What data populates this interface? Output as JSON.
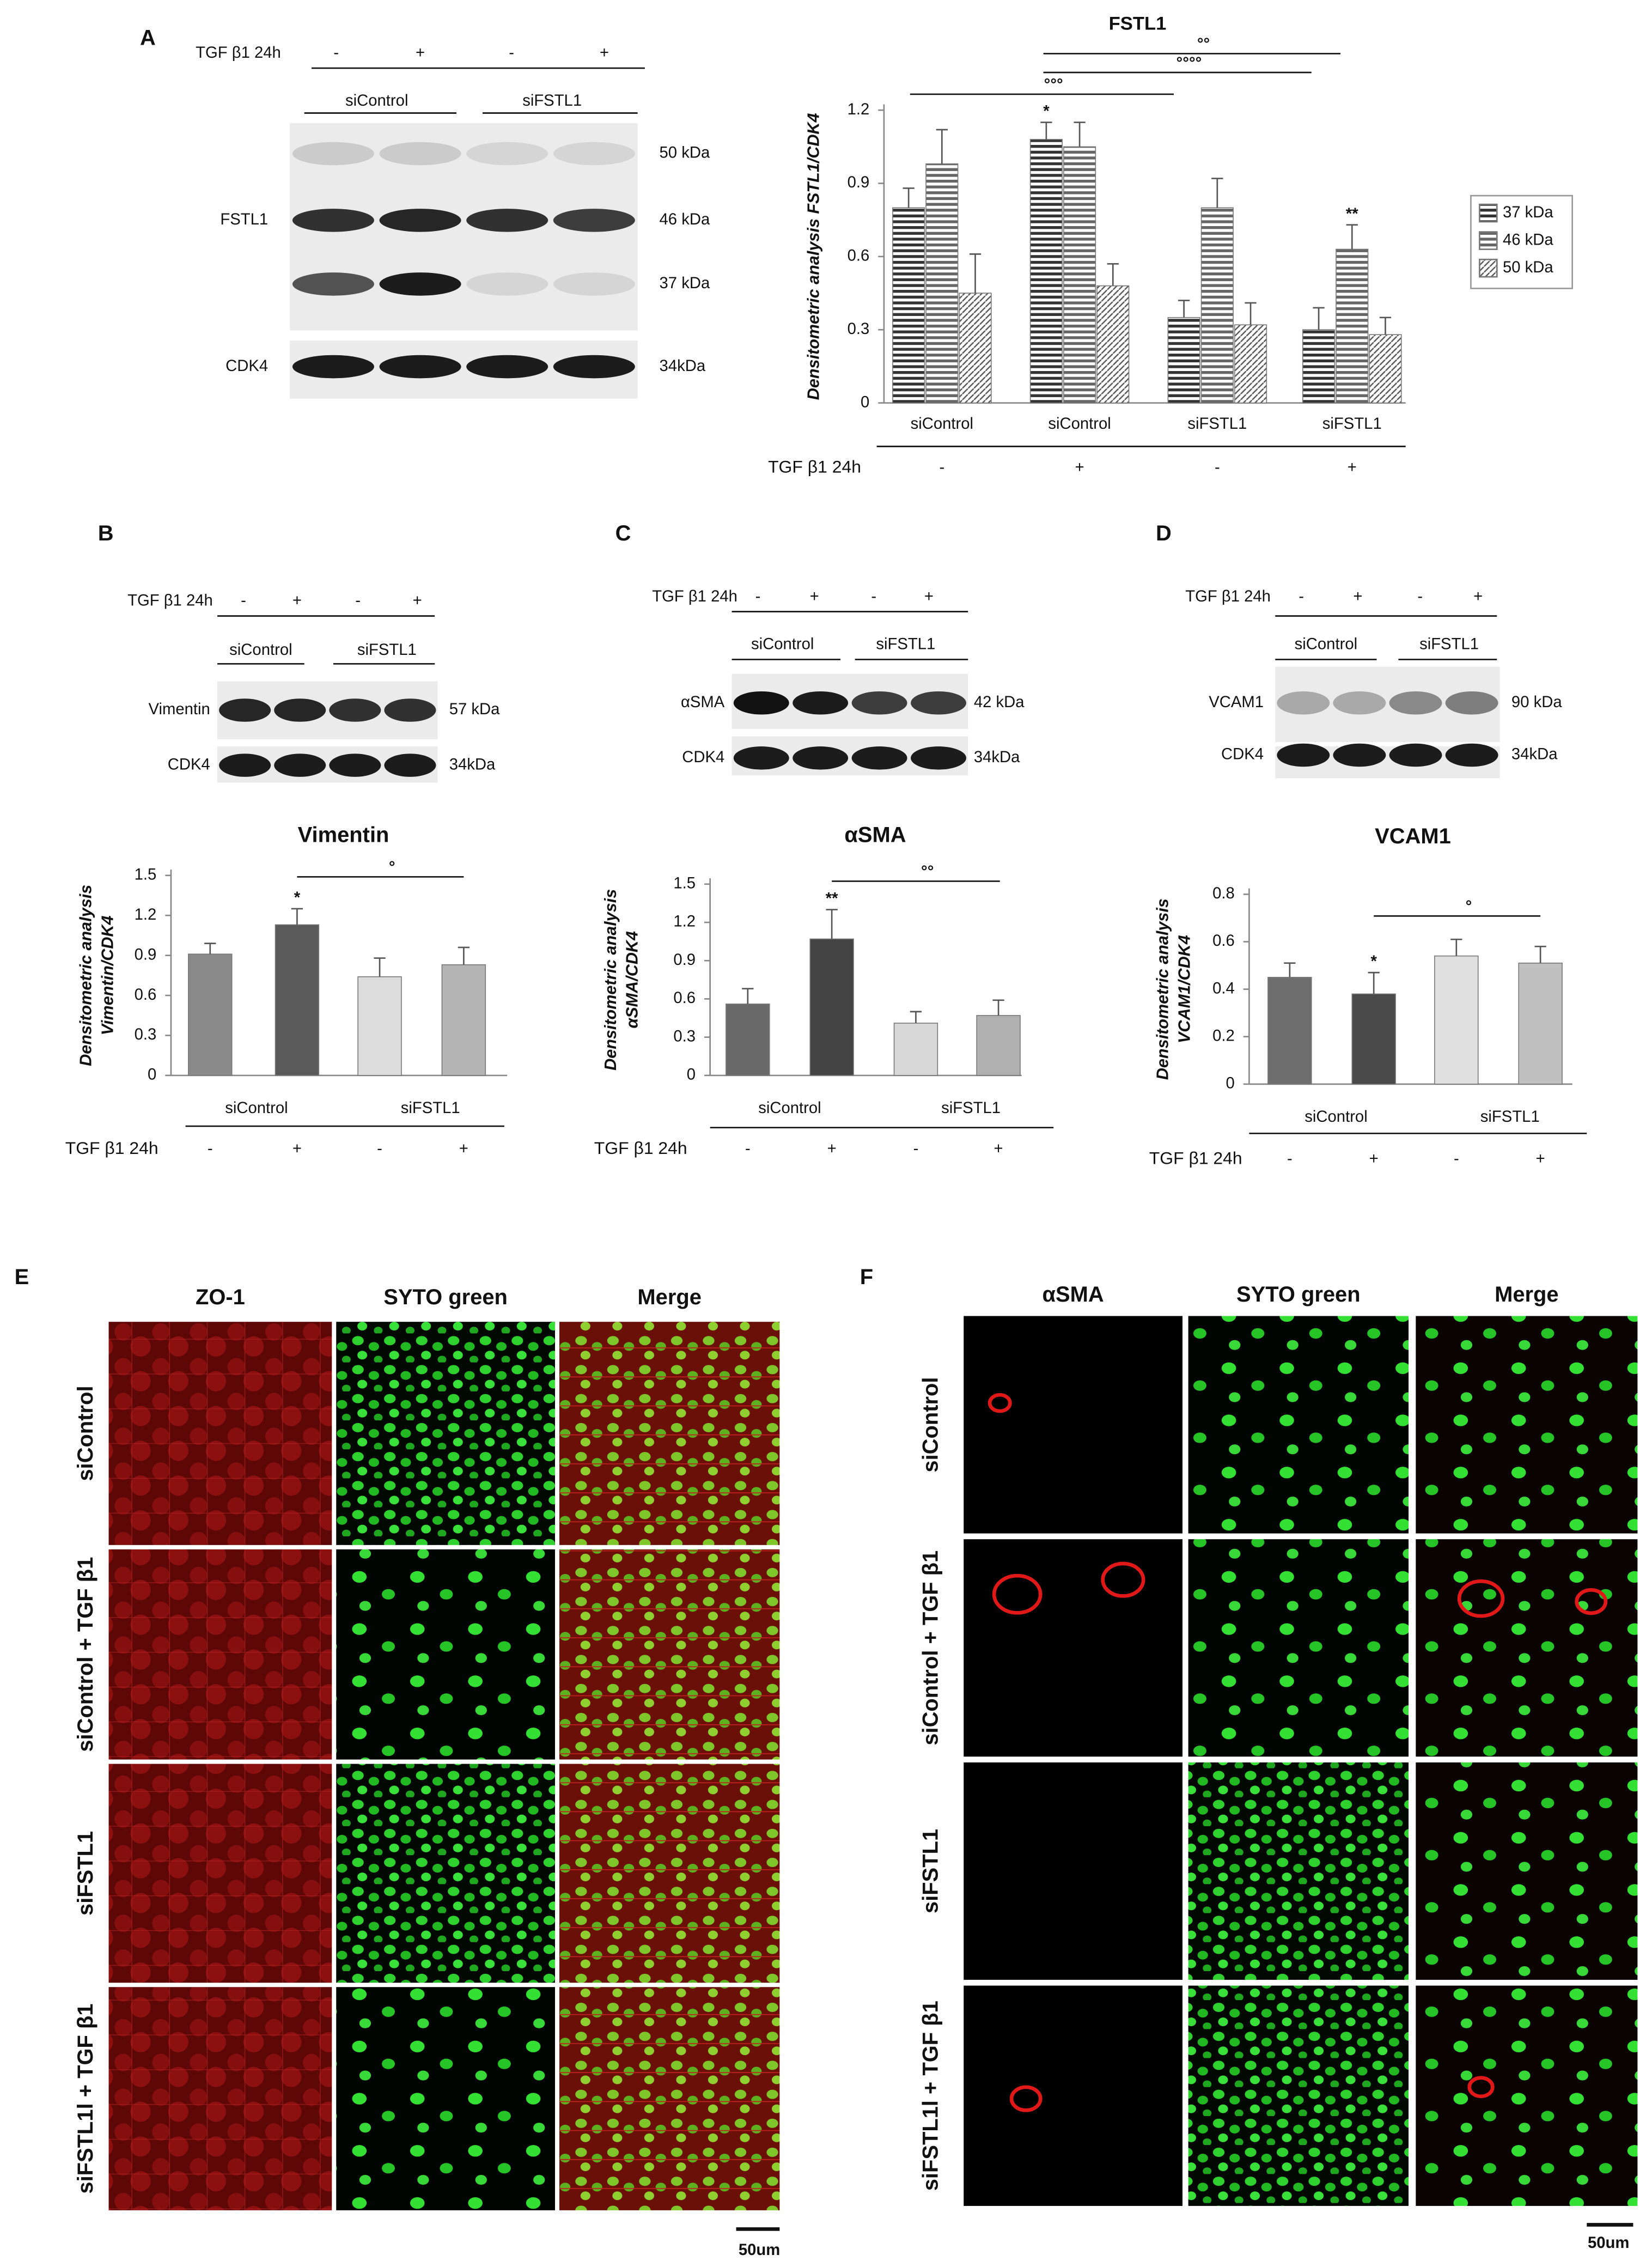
{
  "panel_labels": [
    "A",
    "B",
    "C",
    "D",
    "E",
    "F"
  ],
  "blots": [
    {
      "treatment_label": "TGF β1 24h",
      "treatments": [
        "-",
        "+",
        "-",
        "+"
      ],
      "groups": [
        "siControl",
        "siFSTL1"
      ],
      "rows": [
        {
          "label": "FSTL1",
          "sizes": [
            "50 kDa",
            "46 kDa",
            "37 kDa"
          ]
        },
        {
          "label": "CDK4",
          "sizes": [
            "34kDa"
          ]
        }
      ]
    },
    {
      "treatment_label": "TGF β1 24h",
      "treatments": [
        "-",
        "+",
        "-",
        "+"
      ],
      "groups": [
        "siControl",
        "siFSTL1"
      ],
      "rows": [
        {
          "label": "Vimentin",
          "sizes": [
            "57 kDa"
          ]
        },
        {
          "label": "CDK4",
          "sizes": [
            "34kDa"
          ]
        }
      ]
    },
    {
      "treatment_label": "TGF β1 24h",
      "treatments": [
        "-",
        "+",
        "-",
        "+"
      ],
      "groups": [
        "siControl",
        "siFSTL1"
      ],
      "rows": [
        {
          "label": "αSMA",
          "sizes": [
            "42 kDa"
          ]
        },
        {
          "label": "CDK4",
          "sizes": [
            "34kDa"
          ]
        }
      ]
    },
    {
      "treatment_label": "TGF β1 24h",
      "treatments": [
        "-",
        "+",
        "-",
        "+"
      ],
      "groups": [
        "siControl",
        "siFSTL1"
      ],
      "rows": [
        {
          "label": "VCAM1",
          "sizes": [
            "90 kDa"
          ]
        },
        {
          "label": "CDK4",
          "sizes": [
            "34kDa"
          ]
        }
      ]
    }
  ],
  "chart_data": [
    {
      "type": "bar",
      "title": "FSTL1",
      "y_label": [
        "Densitometric analysis FSTL1/CDK4"
      ],
      "categories": [
        "siControl",
        "siControl",
        "siFSTL1",
        "siFSTL1"
      ],
      "treatment_label": "TGF β1 24h",
      "treatments": [
        "-",
        "+",
        "-",
        "+"
      ],
      "series": [
        {
          "name": "37 kDa",
          "color": "#333333",
          "pattern": "horizontal",
          "values": [
            0.8,
            1.08,
            0.35,
            0.3
          ],
          "errors": [
            0.08,
            0.07,
            0.07,
            0.09
          ],
          "stars": [
            null,
            "*",
            null,
            null
          ]
        },
        {
          "name": "46 kDa",
          "color": "#666666",
          "pattern": "horizontal",
          "values": [
            0.98,
            1.05,
            0.8,
            0.63
          ],
          "errors": [
            0.14,
            0.1,
            0.12,
            0.1
          ],
          "stars": [
            null,
            null,
            null,
            "**"
          ]
        },
        {
          "name": "50 kDa",
          "color": "#555555",
          "pattern": "diagonal",
          "values": [
            0.45,
            0.48,
            0.32,
            0.28
          ],
          "errors": [
            0.16,
            0.09,
            0.09,
            0.07
          ],
          "stars": [
            null,
            null,
            null,
            null
          ]
        }
      ],
      "comparisons": [
        "°°°",
        "°°°°",
        "°°"
      ],
      "ylim": [
        0,
        1.2
      ],
      "yticks": [
        0,
        0.3,
        0.6,
        0.9,
        1.2
      ],
      "legend": "right"
    },
    {
      "type": "bar",
      "title": "Vimentin",
      "y_label": [
        "Densitometric analysis",
        "Vimentin/CDK4"
      ],
      "groups": [
        "siControl",
        "siFSTL1"
      ],
      "categories": [
        "-",
        "+",
        "-",
        "+"
      ],
      "treatment_label": "TGF β1 24h",
      "values": [
        0.91,
        1.13,
        0.74,
        0.83
      ],
      "errors": [
        0.08,
        0.12,
        0.14,
        0.13
      ],
      "stars": [
        null,
        "*",
        null,
        null
      ],
      "colors": [
        "#8a8a8a",
        "#5a5a5a",
        "#dcdcdc",
        "#b4b4b4"
      ],
      "comparisons": [
        "°"
      ],
      "ylim": [
        0,
        1.5
      ],
      "yticks": [
        0,
        0.3,
        0.6,
        0.9,
        1.2,
        1.5
      ]
    },
    {
      "type": "bar",
      "title": "αSMA",
      "y_label": [
        "Densitometric analysis",
        "αSMA/CDK4"
      ],
      "groups": [
        "siControl",
        "siFSTL1"
      ],
      "categories": [
        "-",
        "+",
        "-",
        "+"
      ],
      "treatment_label": "TGF β1 24h",
      "values": [
        0.56,
        1.07,
        0.41,
        0.47
      ],
      "errors": [
        0.12,
        0.23,
        0.09,
        0.12
      ],
      "stars": [
        null,
        "**",
        null,
        null
      ],
      "colors": [
        "#6a6a6a",
        "#444444",
        "#d8d8d8",
        "#b0b0b0"
      ],
      "comparisons": [
        "°°"
      ],
      "ylim": [
        0,
        1.5
      ],
      "yticks": [
        0,
        0.3,
        0.6,
        0.9,
        1.2,
        1.5
      ]
    },
    {
      "type": "bar",
      "title": "VCAM1",
      "y_label": [
        "Densitometric analysis",
        "VCAM1/CDK4"
      ],
      "groups": [
        "siControl",
        "siFSTL1"
      ],
      "categories": [
        "-",
        "+",
        "-",
        "+"
      ],
      "treatment_label": "TGF β1 24h",
      "values": [
        0.45,
        0.38,
        0.54,
        0.51
      ],
      "errors": [
        0.06,
        0.09,
        0.07,
        0.07
      ],
      "stars": [
        null,
        "*",
        null,
        null
      ],
      "colors": [
        "#6e6e6e",
        "#4a4a4a",
        "#e0e0e0",
        "#c0c0c0"
      ],
      "comparisons": [
        "°"
      ],
      "ylim": [
        0,
        0.8
      ],
      "yticks": [
        0,
        0.2,
        0.4,
        0.6,
        0.8
      ]
    }
  ],
  "micrographs": [
    {
      "columns": [
        "ZO-1",
        "SYTO green",
        "Merge"
      ],
      "rows": [
        "siControl",
        "siControl + TGF β1",
        "siFSTL1",
        "siFSTL1l + TGF β1"
      ],
      "scale_bar": "50um"
    },
    {
      "columns": [
        "αSMA",
        "SYTO green",
        "Merge"
      ],
      "rows": [
        "siControl",
        "siControl + TGF β1",
        "siFSTL1",
        "siFSTL1l + TGF β1"
      ],
      "scale_bar": "50um"
    }
  ]
}
